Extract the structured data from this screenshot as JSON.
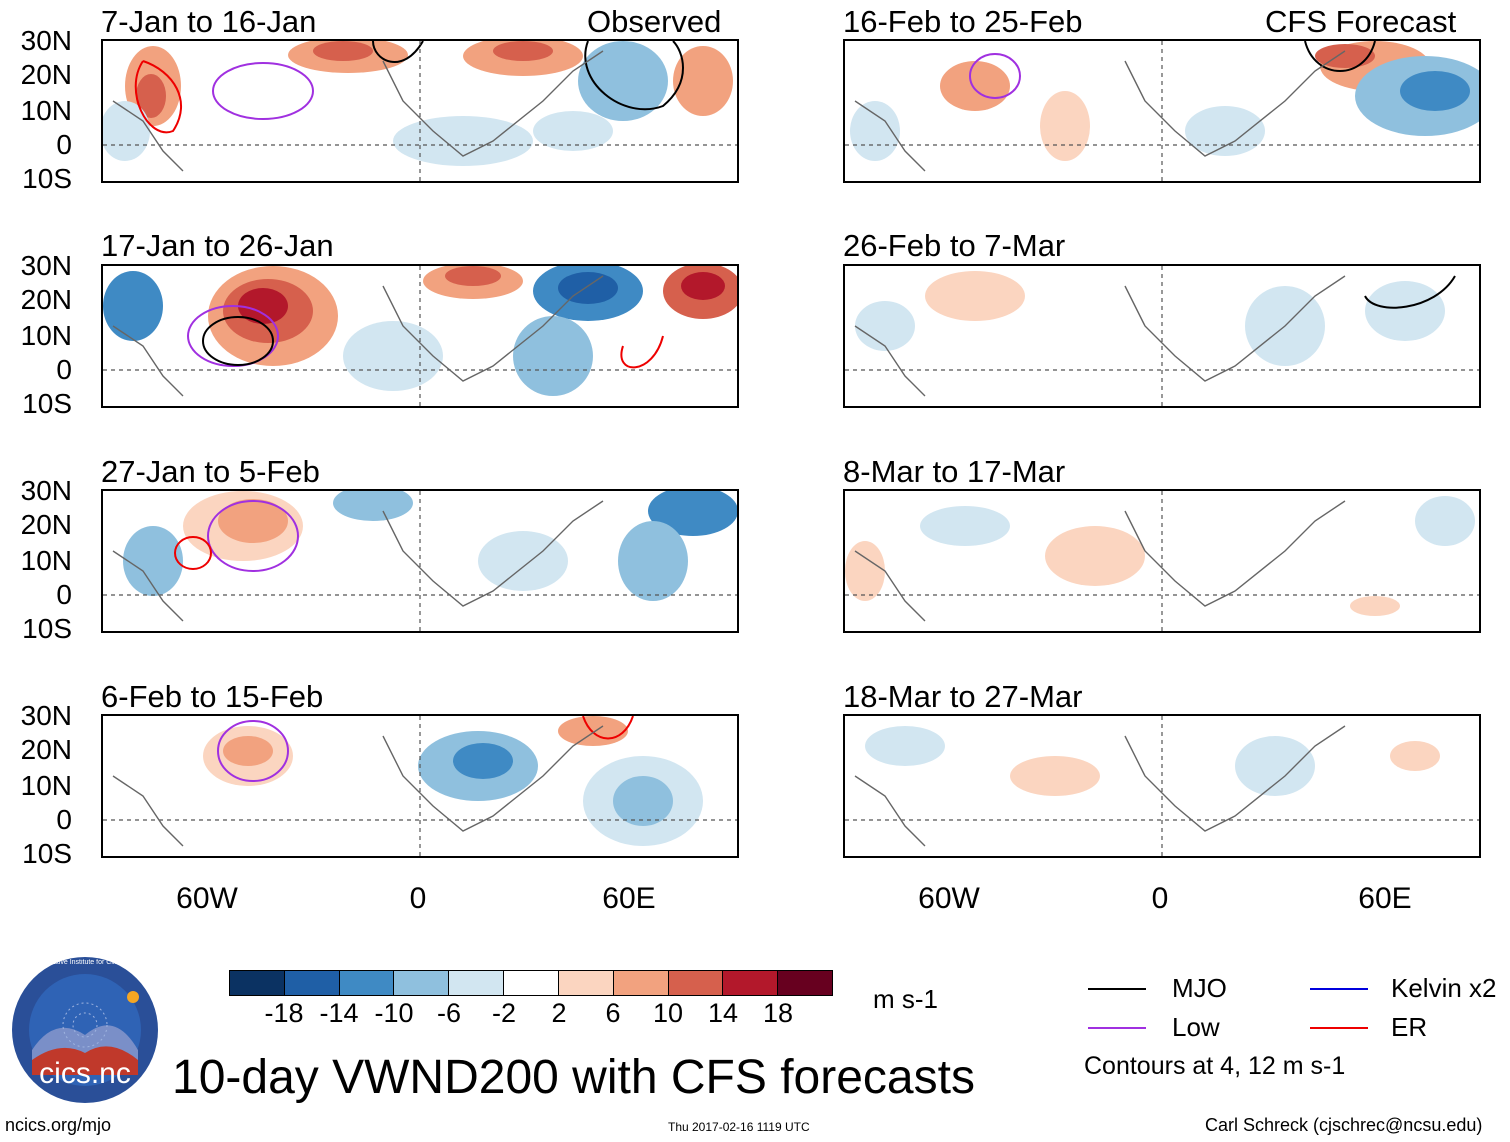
{
  "left_header": "Observed",
  "right_header": "CFS Forecast",
  "panels_left": [
    {
      "title": "7-Jan to 16-Jan"
    },
    {
      "title": "17-Jan to 26-Jan"
    },
    {
      "title": "27-Jan to 5-Feb"
    },
    {
      "title": "6-Feb to 15-Feb"
    }
  ],
  "panels_right": [
    {
      "title": "16-Feb to 25-Feb"
    },
    {
      "title": "26-Feb to 7-Mar"
    },
    {
      "title": "8-Mar to 17-Mar"
    },
    {
      "title": "18-Mar to 27-Mar"
    }
  ],
  "lat_labels": [
    "30N",
    "20N",
    "10N",
    "0",
    "10S"
  ],
  "lon_labels": [
    "60W",
    "0",
    "60E"
  ],
  "colorbar": {
    "ticks": [
      "-18",
      "-14",
      "-10",
      "-6",
      "-2",
      "2",
      "6",
      "10",
      "14",
      "18"
    ],
    "colors": [
      "#0b3262",
      "#1f5fa6",
      "#3f8ac4",
      "#8fc0de",
      "#d2e6f1",
      "#ffffff",
      "#fbd5c0",
      "#f2a27f",
      "#d6604d",
      "#b3182b",
      "#67001f"
    ],
    "unit": "m s-1"
  },
  "contour_legend": [
    {
      "label": "MJO",
      "color": "#000000"
    },
    {
      "label": "Kelvin x2",
      "color": "#0000dd"
    },
    {
      "label": "Low",
      "color": "#a030e0"
    },
    {
      "label": "ER",
      "color": "#ee0000"
    }
  ],
  "contour_note": "Contours at 4, 12 m s-1",
  "main_title": "10-day VWND200 with CFS forecasts",
  "logo_text": "cics.nc",
  "logo_ring_text": "Cooperative Institute for Climate and Satellites",
  "url": "ncics.org/mjo",
  "timestamp": "Thu 2017-02-16 1119 UTC",
  "credit": "Carl Schreck (cjschrec@ncsu.edu)"
}
